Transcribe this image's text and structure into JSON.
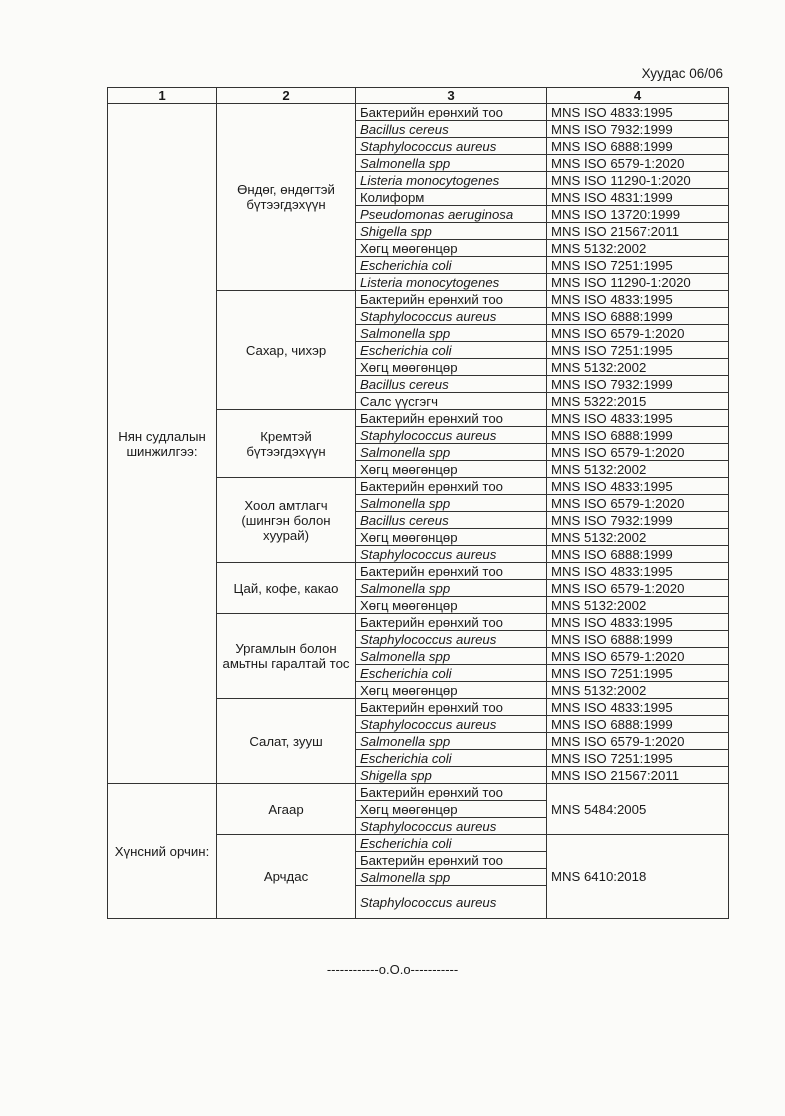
{
  "page_number": "Хуудас 06/06",
  "headers": [
    "1",
    "2",
    "3",
    "4"
  ],
  "sections": [
    {
      "name": "Нян судлалын шинжилгээ:",
      "groups": [
        {
          "name": "Өндөг, өндөгтэй бүтээгдэхүүн",
          "rows": [
            {
              "test": "Бактерийн ерөнхий тоо",
              "italic": false,
              "method": "MNS ISO 4833:1995"
            },
            {
              "test": "Bacillus cereus",
              "italic": true,
              "method": "MNS ISO 7932:1999"
            },
            {
              "test": "Staphylococcus aureus",
              "italic": true,
              "method": "MNS ISO 6888:1999"
            },
            {
              "test": "Salmonella spp",
              "italic": true,
              "method": "MNS ISO 6579-1:2020"
            },
            {
              "test": "Listeria monocytogenes",
              "italic": true,
              "method": "MNS ISO 11290-1:2020"
            },
            {
              "test": "Колиформ",
              "italic": false,
              "method": "MNS  ISO 4831:1999"
            },
            {
              "test": "Pseudomonas aeruginosa",
              "italic": true,
              "method": "MNS ISO 13720:1999"
            },
            {
              "test": "Shigella spp",
              "italic": true,
              "method": "MNS ISO 21567:2011"
            },
            {
              "test": "Хөгц мөөгөнцөр",
              "italic": false,
              "method": "MNS 5132:2002"
            },
            {
              "test": "Escherichia coli",
              "italic": true,
              "method": "MNS ISO 7251:1995"
            },
            {
              "test": "Listeria monocytogenes",
              "italic": true,
              "method": "MNS ISO 11290-1:2020"
            }
          ]
        },
        {
          "name": "Сахар, чихэр",
          "rows": [
            {
              "test": "Бактерийн ерөнхий тоо",
              "italic": false,
              "method": "MNS ISO 4833:1995"
            },
            {
              "test": "Staphylococcus aureus",
              "italic": true,
              "method": "MNS ISO 6888:1999"
            },
            {
              "test": "Salmonella spp",
              "italic": true,
              "method": "MNS ISO 6579-1:2020"
            },
            {
              "test": "Escherichia coli",
              "italic": true,
              "method": "MNS ISO 7251:1995"
            },
            {
              "test": "Хөгц мөөгөнцөр",
              "italic": false,
              "method": "MNS 5132:2002"
            },
            {
              "test": "Bacillus cereus",
              "italic": true,
              "method": "MNS ISO 7932:1999"
            },
            {
              "test": "Салс үүсгэгч",
              "italic": false,
              "method": "MNS 5322:2015"
            }
          ]
        },
        {
          "name": "Кремтэй бүтээгдэхүүн",
          "rows": [
            {
              "test": "Бактерийн ерөнхий тоо",
              "italic": false,
              "method": "MNS ISO 4833:1995"
            },
            {
              "test": "Staphylococcus aureus",
              "italic": true,
              "method": "MNS ISO 6888:1999"
            },
            {
              "test": "Salmonella spp",
              "italic": true,
              "method": "MNS ISO 6579-1:2020"
            },
            {
              "test": "Хөгц мөөгөнцөр",
              "italic": false,
              "method": "MNS 5132:2002"
            }
          ]
        },
        {
          "name": "Хоол амтлагч (шингэн болон хуурай)",
          "rows": [
            {
              "test": "Бактерийн ерөнхий тоо",
              "italic": false,
              "method": "MNS ISO 4833:1995"
            },
            {
              "test": "Salmonella spp",
              "italic": true,
              "method": "MNS ISO 6579-1:2020"
            },
            {
              "test": "Bacillus cereus",
              "italic": true,
              "method": "MNS ISO 7932:1999"
            },
            {
              "test": "Хөгц мөөгөнцөр",
              "italic": false,
              "method": "MNS 5132:2002"
            },
            {
              "test": "Staphylococcus aureus",
              "italic": true,
              "method": "MNS ISO 6888:1999"
            }
          ]
        },
        {
          "name": "Цай, кофе, какао",
          "rows": [
            {
              "test": "Бактерийн ерөнхий тоо",
              "italic": false,
              "method": "MNS ISO 4833:1995"
            },
            {
              "test": "Salmonella spp",
              "italic": true,
              "method": "MNS ISO 6579-1:2020"
            },
            {
              "test": "Хөгц мөөгөнцөр",
              "italic": false,
              "method": "MNS 5132:2002"
            }
          ]
        },
        {
          "name": "Ургамлын болон амьтны гаралтай тос",
          "rows": [
            {
              "test": "Бактерийн ерөнхий тоо",
              "italic": false,
              "method": "MNS ISO 4833:1995"
            },
            {
              "test": "Staphylococcus aureus",
              "italic": true,
              "method": "MNS ISO 6888:1999"
            },
            {
              "test": "Salmonella spp",
              "italic": true,
              "method": "MNS ISO 6579-1:2020"
            },
            {
              "test": "Escherichia coli",
              "italic": true,
              "method": "MNS ISO 7251:1995"
            },
            {
              "test": "Хөгц мөөгөнцөр",
              "italic": false,
              "method": "MNS 5132:2002"
            }
          ]
        },
        {
          "name": "Салат, зууш",
          "rows": [
            {
              "test": "Бактерийн ерөнхий тоо",
              "italic": false,
              "method": "MNS ISO 4833:1995"
            },
            {
              "test": "Staphylococcus aureus",
              "italic": true,
              "method": "MNS ISO 6888:1999"
            },
            {
              "test": "Salmonella spp",
              "italic": true,
              "method": "MNS ISO 6579-1:2020"
            },
            {
              "test": "Escherichia coli",
              "italic": true,
              "method": "MNS ISO 7251:1995"
            },
            {
              "test": "Shigella spp",
              "italic": true,
              "method": "MNS ISO 21567:2011"
            }
          ]
        }
      ]
    },
    {
      "name": "Хүнсний орчин:",
      "groups": [
        {
          "name": "Агаар",
          "method": "MNS 5484:2005",
          "rows": [
            {
              "test": "Бактерийн ерөнхий тоо",
              "italic": false
            },
            {
              "test": "Хөгц мөөгөнцөр",
              "italic": false
            },
            {
              "test": "Staphylococcus aureus",
              "italic": true
            }
          ]
        },
        {
          "name": "Арчдас",
          "method": "MNS 6410:2018",
          "rows": [
            {
              "test": "Escherichia coli",
              "italic": true
            },
            {
              "test": "Бактерийн ерөнхий тоо",
              "italic": false
            },
            {
              "test": "Salmonella spp",
              "italic": true
            },
            {
              "test": "Staphylococcus aureus",
              "italic": true
            }
          ]
        }
      ]
    }
  ],
  "footer": "------------o.O.o-----------"
}
